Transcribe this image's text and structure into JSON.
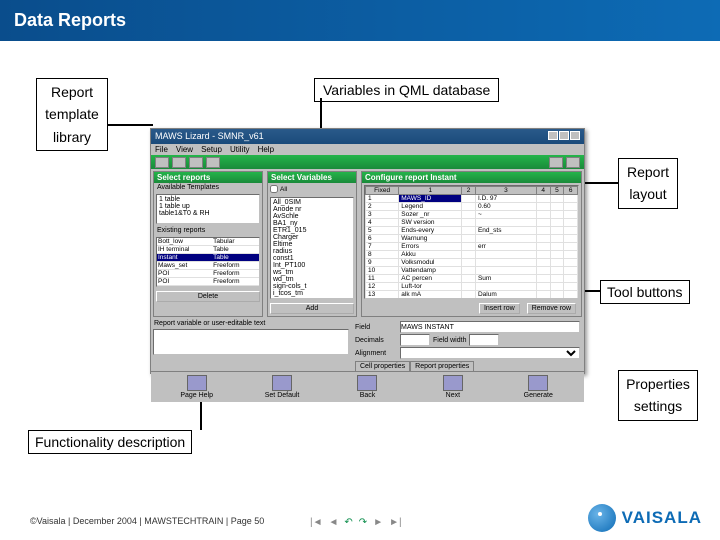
{
  "slide": {
    "title": "Data Reports",
    "footer": "©Vaisala | December 2004 | MAWSTECHTRAIN | Page 50",
    "logo_text": "VAISALA"
  },
  "annotations": {
    "report_template_library": {
      "l1": "Report",
      "l2": "template",
      "l3": "library"
    },
    "variables": "Variables in QML database",
    "report_layout": {
      "l1": "Report",
      "l2": "layout"
    },
    "tool_buttons": "Tool buttons",
    "properties_settings": {
      "l1": "Properties",
      "l2": "settings"
    },
    "functionality": "Functionality description"
  },
  "app": {
    "title": "MAWS Lizard - SMNR_v61",
    "menu": [
      "File",
      "View",
      "Setup",
      "Utility",
      "Help"
    ],
    "headers": {
      "left": "Select reports",
      "mid": "Select Variables",
      "right": "Configure report Instant"
    },
    "templates_label": "Available Templates",
    "templates": [
      "1 table",
      "1 table up",
      "table1&T0 & RH"
    ],
    "existing_label": "Existing reports",
    "existing": [
      [
        "Bott_low",
        "Tabular"
      ],
      [
        "IH terminal",
        "Table"
      ],
      [
        "Instant",
        "Table"
      ],
      [
        "Maws_set",
        "Freeform"
      ],
      [
        "POI",
        "Freeform"
      ],
      [
        "POI",
        "Freeform"
      ]
    ],
    "btn_delete": "Delete",
    "variables": [
      "All_0SIM",
      "Anode nr",
      "AvSchle",
      "BA1_ny",
      "ETR1_015",
      "Charger",
      "Eltime",
      "radius",
      "const1",
      "Int_PT100",
      "ws_tm",
      "wd_tm",
      "sign-cols_t",
      "i_tcos_tm"
    ],
    "btn_add": "Add",
    "grid": {
      "cols": [
        "Fixed",
        "1",
        "2",
        "3",
        "4",
        "5",
        "6"
      ],
      "rows": [
        [
          "1",
          "MAWS_ID",
          "",
          "I.D. 97",
          "",
          "",
          ""
        ],
        [
          "2",
          "Legend",
          "",
          "0.60",
          "",
          "",
          ""
        ],
        [
          "3",
          "Sozer _nr",
          "",
          "~",
          "",
          "",
          ""
        ],
        [
          "4",
          "SW version",
          "",
          "",
          "",
          "",
          ""
        ],
        [
          "5",
          "Ends-every",
          "",
          "End_sts",
          "",
          "",
          ""
        ],
        [
          "6",
          "Warnung",
          "",
          "",
          "",
          "",
          ""
        ],
        [
          "7",
          "Errors",
          "",
          "err",
          "",
          "",
          ""
        ],
        [
          "8",
          "Akku",
          "",
          "",
          "",
          "",
          ""
        ],
        [
          "9",
          "Volksmodul",
          "",
          "",
          "",
          "",
          ""
        ],
        [
          "10",
          "Vattendamp",
          "",
          "",
          "",
          "",
          ""
        ],
        [
          "11",
          "AC percen",
          "",
          "Sum",
          "",
          "",
          ""
        ],
        [
          "12",
          "Luft-tor",
          "",
          "",
          "",
          "",
          ""
        ],
        [
          "13",
          "alk mA",
          "",
          "Dalum",
          "",
          "",
          ""
        ],
        [
          "14",
          "Volksmodul",
          "",
          "Volksmodul",
          "",
          "",
          ""
        ],
        [
          "15",
          "Nylemand",
          "",
          "Barom",
          "",
          "",
          ""
        ]
      ]
    },
    "btn_insert": "Insert row",
    "btn_remove": "Remove row",
    "desc_label": "Report variable or user-editable text",
    "props": {
      "field_label": "Field",
      "field_value": "MAWS INSTANT",
      "dec_label": "Decimals",
      "width_label": "Field width",
      "align_label": "Alignment"
    },
    "tabs": [
      "Cell properties",
      "Report properties"
    ],
    "bottom": [
      "Page Help",
      "Set Default",
      "Back",
      "Next",
      "Generate"
    ]
  }
}
